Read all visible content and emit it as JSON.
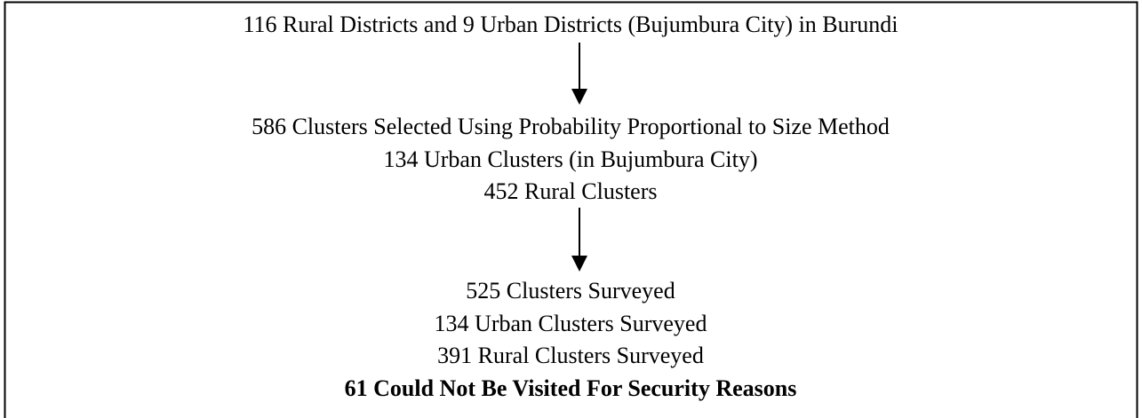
{
  "nodes": [
    {
      "lines": [
        "116 Rural Districts and 9 Urban Districts (Bujumbura City) in Burundi"
      ]
    },
    {
      "lines": [
        "586 Clusters Selected Using Probability Proportional to Size Method",
        "134 Urban Clusters (in Bujumbura City)",
        "452 Rural Clusters"
      ]
    },
    {
      "lines": [
        "525 Clusters Surveyed",
        "134 Urban Clusters Surveyed",
        "391 Rural Clusters Surveyed",
        "61 Could Not Be Visited For Security Reasons"
      ]
    }
  ]
}
